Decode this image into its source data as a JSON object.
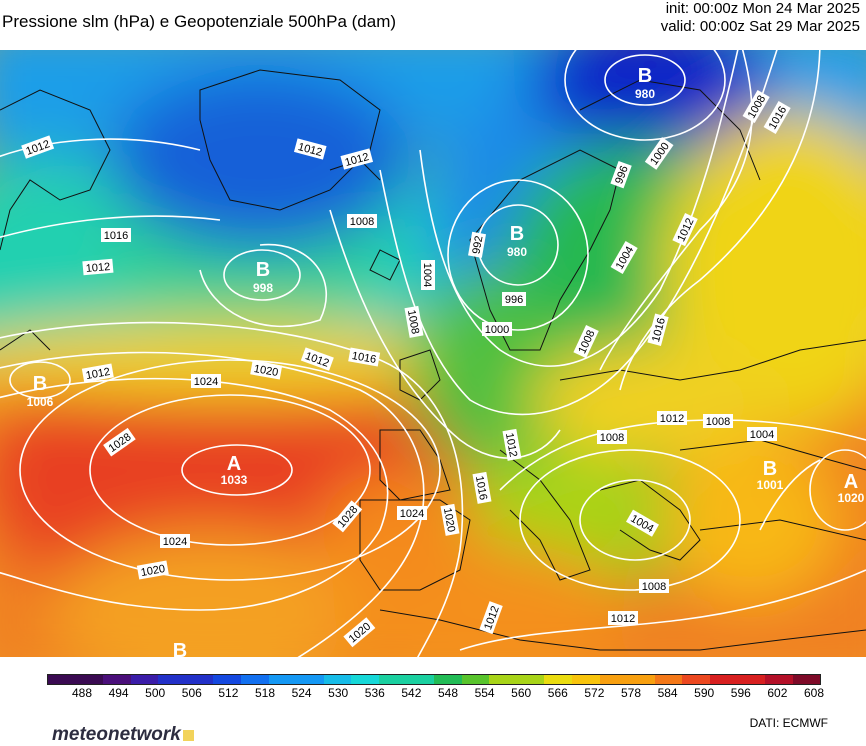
{
  "header": {
    "title": "Pressione slm (hPa) e Geopotenziale 500hPa (dam)",
    "init": "init: 00:00z Mon 24 Mar 2025",
    "valid": "valid: 00:00z Sat 29 Mar 2025"
  },
  "colorbar": {
    "labels": [
      "488",
      "494",
      "500",
      "506",
      "512",
      "518",
      "524",
      "530",
      "536",
      "542",
      "548",
      "554",
      "560",
      "566",
      "572",
      "578",
      "584",
      "590",
      "596",
      "602",
      "608"
    ],
    "colors": [
      "#3a0a52",
      "#4a0f7a",
      "#3a1ca8",
      "#2230c8",
      "#1448e0",
      "#1270f0",
      "#1498f4",
      "#16bce8",
      "#16d8d8",
      "#1ad0a0",
      "#22bc56",
      "#58c42c",
      "#a8d418",
      "#eadc10",
      "#f8c40c",
      "#f8a010",
      "#f47818",
      "#ec4820",
      "#d82020",
      "#b41028",
      "#7e0a28"
    ]
  },
  "pressure_labels": [
    {
      "text": "1012"
    },
    {
      "text": "1012"
    },
    {
      "text": "1012"
    },
    {
      "text": "1016"
    },
    {
      "text": "1012"
    },
    {
      "text": "1008"
    },
    {
      "text": "1004"
    },
    {
      "text": "992"
    },
    {
      "text": "996"
    },
    {
      "text": "1000"
    },
    {
      "text": "1008"
    },
    {
      "text": "1016"
    },
    {
      "text": "1008"
    },
    {
      "text": "996"
    },
    {
      "text": "1000"
    },
    {
      "text": "1004"
    },
    {
      "text": "1012"
    },
    {
      "text": "1016"
    },
    {
      "text": "1008"
    },
    {
      "text": "1012"
    },
    {
      "text": "1016"
    },
    {
      "text": "1020"
    },
    {
      "text": "1024"
    },
    {
      "text": "1012"
    },
    {
      "text": "1028"
    },
    {
      "text": "1024"
    },
    {
      "text": "1020"
    },
    {
      "text": "1028"
    },
    {
      "text": "1024"
    },
    {
      "text": "1020"
    },
    {
      "text": "1016"
    },
    {
      "text": "1012"
    },
    {
      "text": "1020"
    },
    {
      "text": "1012"
    },
    {
      "text": "1008"
    },
    {
      "text": "1008"
    },
    {
      "text": "1012"
    },
    {
      "text": "1008"
    },
    {
      "text": "1004"
    },
    {
      "text": "1004"
    },
    {
      "text": "1008"
    },
    {
      "text": "1012"
    },
    {
      "text": "1016"
    },
    {
      "text": "1020"
    }
  ],
  "centers": [
    {
      "letter": "B",
      "value": "980"
    },
    {
      "letter": "B",
      "value": "980"
    },
    {
      "letter": "B",
      "value": "998"
    },
    {
      "letter": "B",
      "value": "1006"
    },
    {
      "letter": "A",
      "value": "1033"
    },
    {
      "letter": "B",
      "value": "1001"
    },
    {
      "letter": "A",
      "value": "1020"
    },
    {
      "letter": "B",
      "value": ""
    }
  ],
  "footer": {
    "logo": "meteonetwork",
    "source": "DATI:  ECMWF"
  }
}
